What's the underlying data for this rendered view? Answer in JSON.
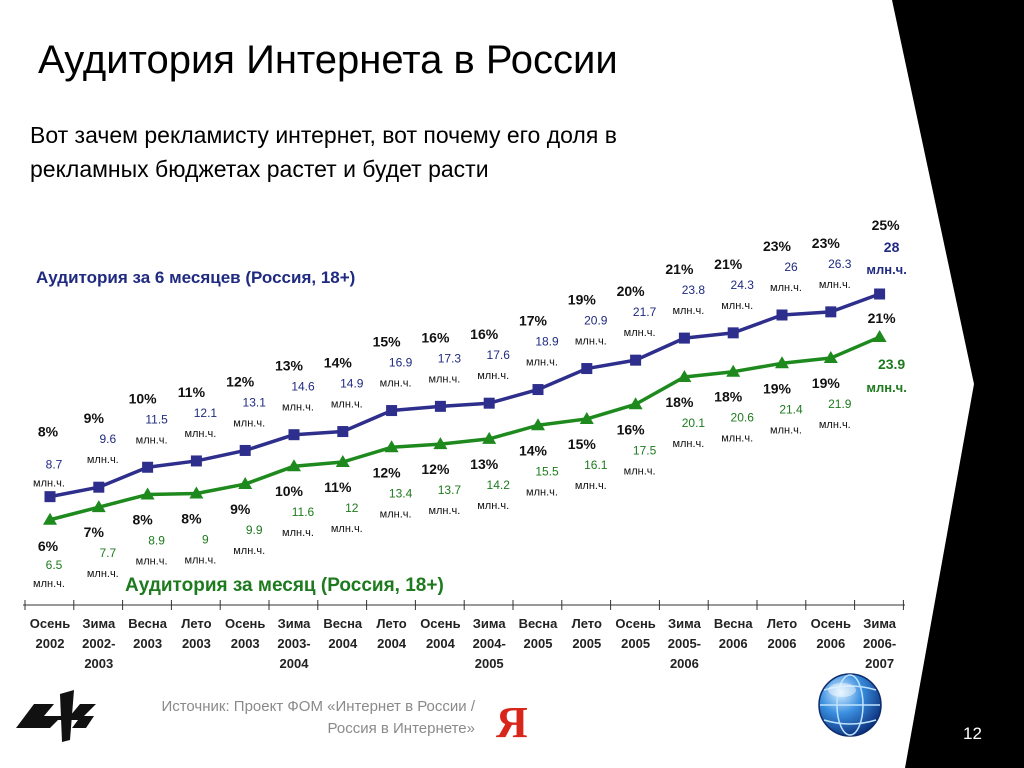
{
  "title": "Аудитория Интернета в России",
  "subtitle": "Вот зачем рекламисту интернет, вот почему его доля  в рекламных бюджетах растет и будет расти",
  "footer": {
    "source": "Источник: Проект ФОМ «Интернет в России / Россия в Интернете»",
    "slide_number": "12",
    "yandex_letter": "Я"
  },
  "colors": {
    "six_month": "#2e2e8c",
    "monthly": "#1e8a1e",
    "six_month_label": "#1f2a80",
    "monthly_label": "#1e7a1e"
  },
  "chart_data": {
    "type": "line",
    "categories": [
      [
        "Осень",
        "2002"
      ],
      [
        "Зима",
        "2002-",
        "2003"
      ],
      [
        "Весна",
        "2003"
      ],
      [
        "Лето",
        "2003"
      ],
      [
        "Осень",
        "2003"
      ],
      [
        "Зима",
        "2003-",
        "2004"
      ],
      [
        "Весна",
        "2004"
      ],
      [
        "Лето",
        "2004"
      ],
      [
        "Осень",
        "2004"
      ],
      [
        "Зима",
        "2004-",
        "2005"
      ],
      [
        "Весна",
        "2005"
      ],
      [
        "Лето",
        "2005"
      ],
      [
        "Осень",
        "2005"
      ],
      [
        "Зима",
        "2005-",
        "2006"
      ],
      [
        "Весна",
        "2006"
      ],
      [
        "Лето",
        "2006"
      ],
      [
        "Осень",
        "2006"
      ],
      [
        "Зима",
        "2006-",
        "2007"
      ]
    ],
    "unit": "млн.ч.",
    "series": [
      {
        "name": "Аудитория за 6 месяцев (Россия, 18+)",
        "marker": "square",
        "percent": [
          "8%",
          "9%",
          "10%",
          "11%",
          "12%",
          "13%",
          "14%",
          "15%",
          "16%",
          "16%",
          "17%",
          "19%",
          "20%",
          "21%",
          "21%",
          "23%",
          "23%",
          "25%"
        ],
        "values": [
          8.7,
          9.6,
          11.5,
          12.1,
          13.1,
          14.6,
          14.9,
          16.9,
          17.3,
          17.6,
          18.9,
          20.9,
          21.7,
          23.8,
          24.3,
          26,
          26.3,
          28
        ]
      },
      {
        "name": "Аудитория за месяц (Россия, 18+)",
        "marker": "triangle",
        "percent": [
          "6%",
          "7%",
          "8%",
          "8%",
          "9%",
          "10%",
          "11%",
          "12%",
          "12%",
          "13%",
          "14%",
          "15%",
          "16%",
          "18%",
          "18%",
          "19%",
          "19%",
          "21%"
        ],
        "values": [
          6.5,
          7.7,
          8.9,
          9,
          9.9,
          11.6,
          12,
          13.4,
          13.7,
          14.2,
          15.5,
          16.1,
          17.5,
          20.1,
          20.6,
          21.4,
          21.9,
          23.9
        ]
      }
    ]
  }
}
